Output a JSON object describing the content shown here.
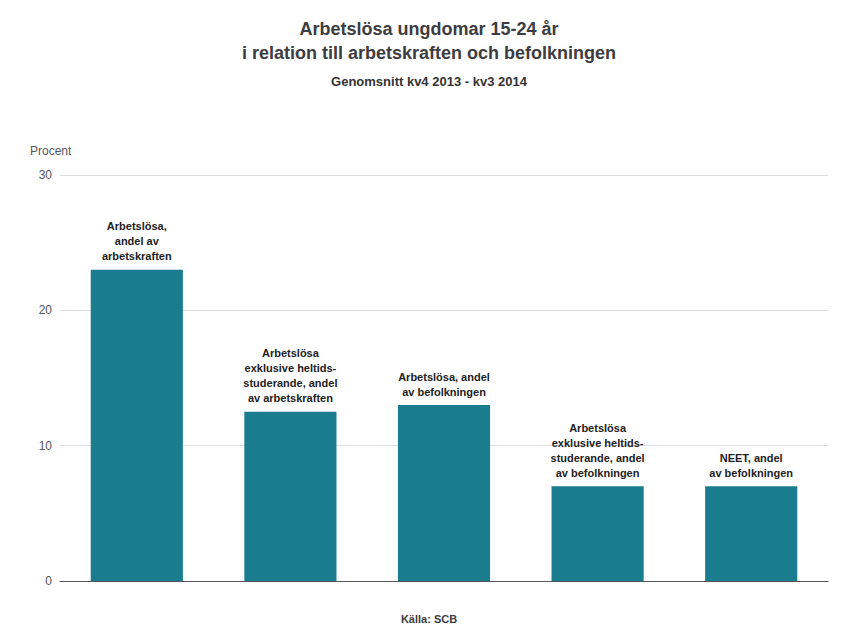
{
  "chart_data": {
    "type": "bar",
    "title": "Arbetslösa ungdomar 15-24 år\ni relation till arbetskraften och befolkningen",
    "subtitle": "Genomsnitt kv4 2013 - kv3 2014",
    "ylabel": "Procent",
    "annotations": [
      "Källa: SCB"
    ],
    "categories": [
      "Arbetslösa,\nandel av\narbetskraften",
      "Arbetslösa\nexklusive heltids-\nstuderande, andel\nav arbetskraften",
      "Arbetslösa, andel\nav befolkningen",
      "Arbetslösa\nexklusive heltids-\nstuderande, andel\nav befolkningen",
      "NEET, andel\nav befolkningen"
    ],
    "values": [
      23.0,
      12.5,
      13.0,
      7.0,
      7.0
    ],
    "color": "#1a7d8e",
    "ylim": [
      0,
      30
    ],
    "yticks": [
      0,
      10,
      20,
      30
    ],
    "grid": true,
    "tick_labels": "y"
  }
}
